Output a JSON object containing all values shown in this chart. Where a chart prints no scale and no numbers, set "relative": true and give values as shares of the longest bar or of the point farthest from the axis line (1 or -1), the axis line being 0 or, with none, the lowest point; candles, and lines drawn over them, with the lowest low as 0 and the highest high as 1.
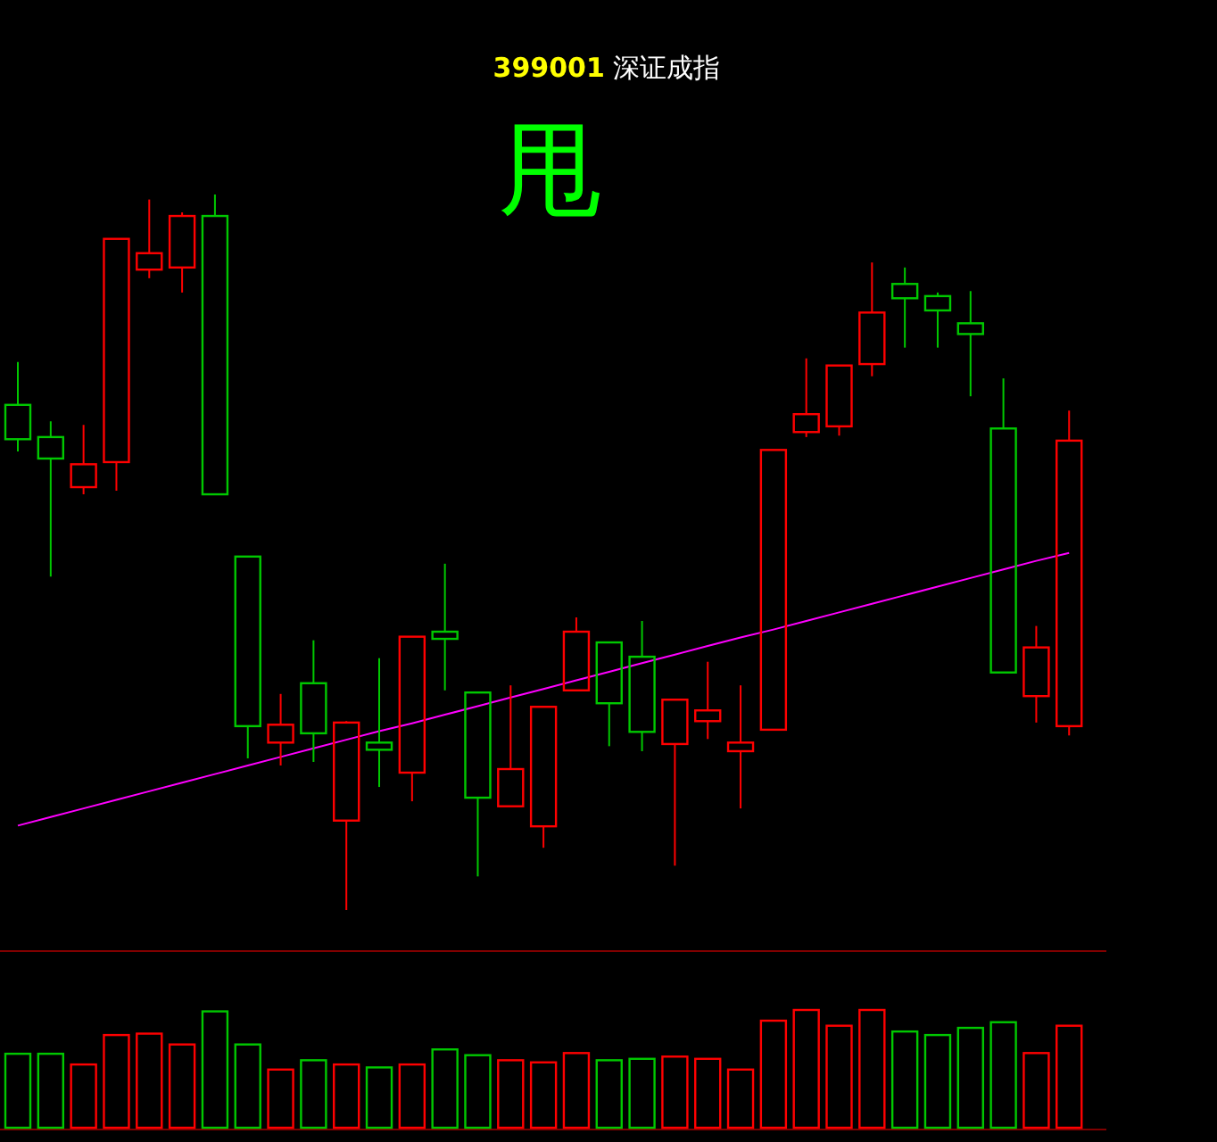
{
  "chart_data": [
    {
      "type": "candlestick",
      "title": "**399001** 深证成指",
      "annotations": [
        "甩"
      ],
      "relative": true,
      "categories": [
        null,
        null,
        null,
        null,
        null,
        null,
        null,
        null,
        null,
        null,
        null,
        null,
        null,
        null,
        null,
        null,
        null,
        null,
        null,
        null,
        null,
        null,
        null,
        null,
        null,
        null,
        null,
        null,
        null,
        null,
        null,
        null,
        null
      ],
      "ohlc": [
        [
          0.706,
          0.766,
          0.641,
          0.658
        ],
        [
          0.661,
          0.683,
          0.466,
          0.631
        ],
        [
          0.591,
          0.678,
          0.581,
          0.623
        ],
        [
          0.626,
          0.938,
          0.586,
          0.938
        ],
        [
          0.895,
          0.993,
          0.883,
          0.918
        ],
        [
          0.898,
          0.975,
          0.863,
          0.97
        ],
        [
          0.97,
          1.0,
          0.581,
          0.581
        ],
        [
          0.494,
          0.494,
          0.212,
          0.257
        ],
        [
          0.234,
          0.302,
          0.202,
          0.259
        ],
        [
          0.317,
          0.377,
          0.207,
          0.247
        ],
        [
          0.125,
          0.264,
          0,
          0.262
        ],
        [
          0.234,
          0.352,
          0.172,
          0.224
        ],
        [
          0.192,
          0.382,
          0.152,
          0.382
        ],
        [
          0.389,
          0.484,
          0.307,
          0.379
        ],
        [
          0.304,
          0.304,
          0.047,
          0.157
        ],
        [
          0.145,
          0.314,
          0.145,
          0.197
        ],
        [
          0.117,
          0.284,
          0.087,
          0.284
        ],
        [
          0.307,
          0.409,
          0.307,
          0.389
        ],
        [
          0.374,
          0.374,
          0.229,
          0.289
        ],
        [
          0.354,
          0.404,
          0.222,
          0.249
        ],
        [
          0.232,
          0.294,
          0.062,
          0.294
        ],
        [
          0.264,
          0.347,
          0.239,
          0.279
        ],
        [
          0.222,
          0.314,
          0.142,
          0.234
        ],
        [
          0.252,
          0.643,
          0.252,
          0.643
        ],
        [
          0.668,
          0.771,
          0.661,
          0.693
        ],
        [
          0.676,
          0.761,
          0.663,
          0.761
        ],
        [
          0.763,
          0.905,
          0.746,
          0.835
        ],
        [
          0.875,
          0.898,
          0.786,
          0.855
        ],
        [
          0.858,
          0.863,
          0.786,
          0.838
        ],
        [
          0.82,
          0.865,
          0.718,
          0.805
        ],
        [
          0.673,
          0.743,
          0.332,
          0.332
        ],
        [
          0.299,
          0.397,
          0.262,
          0.367
        ],
        [
          0.257,
          0.698,
          0.244,
          0.656
        ]
      ],
      "colors": [
        "#00c800",
        "#00c800",
        "#ff0000",
        "#ff0000",
        "#ff0000",
        "#ff0000",
        "#00c800",
        "#00c800",
        "#ff0000",
        "#00c800",
        "#ff0000",
        "#00c800",
        "#ff0000",
        "#00c800",
        "#00c800",
        "#ff0000",
        "#ff0000",
        "#ff0000",
        "#00c800",
        "#00c800",
        "#ff0000",
        "#ff0000",
        "#ff0000",
        "#ff0000",
        "#ff0000",
        "#ff0000",
        "#ff0000",
        "#00c800",
        "#00c800",
        "#00c800",
        "#00c800",
        "#ff0000",
        "#ff0000"
      ],
      "series": [
        {
          "type": "line",
          "color": "#ff00ff",
          "values": [
            0.118,
            0.13,
            0.142,
            0.154,
            0.166,
            0.178,
            0.19,
            0.202,
            0.214,
            0.226,
            0.238,
            0.25,
            0.261,
            0.273,
            0.285,
            0.297,
            0.309,
            0.321,
            0.333,
            0.345,
            0.357,
            0.369,
            0.381,
            0.392,
            0.404,
            0.416,
            0.428,
            0.44,
            0.452,
            0.464,
            0.476,
            0.488,
            0.499
          ]
        }
      ]
    },
    {
      "type": "bar",
      "relative": true,
      "categories": [
        null,
        null,
        null,
        null,
        null,
        null,
        null,
        null,
        null,
        null,
        null,
        null,
        null,
        null,
        null,
        null,
        null,
        null,
        null,
        null,
        null,
        null,
        null,
        null,
        null,
        null,
        null,
        null,
        null,
        null,
        null,
        null,
        null
      ],
      "values": [
        0.628,
        0.628,
        0.537,
        0.787,
        0.799,
        0.707,
        0.988,
        0.707,
        0.494,
        0.573,
        0.537,
        0.512,
        0.537,
        0.665,
        0.616,
        0.573,
        0.555,
        0.634,
        0.573,
        0.585,
        0.604,
        0.585,
        0.494,
        0.909,
        1.0,
        0.866,
        1.0,
        0.817,
        0.787,
        0.848,
        0.896,
        0.634,
        0.866
      ],
      "colors": [
        "#00c800",
        "#00c800",
        "#ff0000",
        "#ff0000",
        "#ff0000",
        "#ff0000",
        "#00c800",
        "#00c800",
        "#ff0000",
        "#00c800",
        "#ff0000",
        "#00c800",
        "#ff0000",
        "#00c800",
        "#00c800",
        "#ff0000",
        "#ff0000",
        "#ff0000",
        "#00c800",
        "#00c800",
        "#ff0000",
        "#ff0000",
        "#ff0000",
        "#ff0000",
        "#ff0000",
        "#ff0000",
        "#ff0000",
        "#00c800",
        "#00c800",
        "#00c800",
        "#00c800",
        "#ff0000",
        "#ff0000"
      ]
    }
  ]
}
